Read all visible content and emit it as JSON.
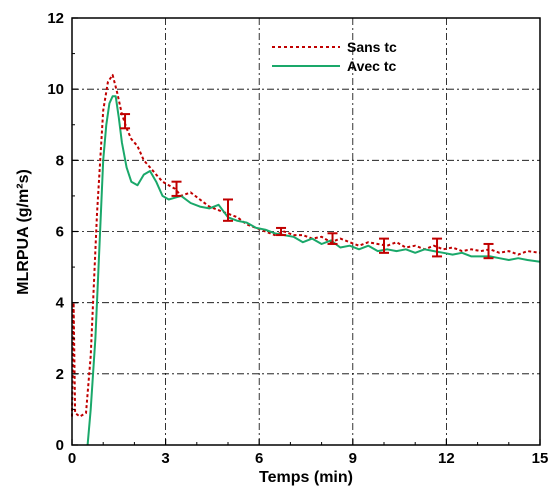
{
  "chart_data": {
    "type": "line",
    "xlabel": "Temps (min)",
    "ylabel": "MLRPUA (g/m²s)",
    "xlim": [
      0,
      15
    ],
    "ylim": [
      0,
      12
    ],
    "xticks": [
      0,
      3,
      6,
      9,
      12,
      15
    ],
    "yticks": [
      0,
      2,
      4,
      6,
      8,
      10,
      12
    ],
    "grid": true,
    "legend_position": "top-right",
    "series": [
      {
        "name": "Sans tc",
        "color": "#c00000",
        "style": "dotted",
        "x": [
          0.0,
          0.05,
          0.1,
          0.25,
          0.45,
          0.6,
          0.8,
          1.0,
          1.15,
          1.3,
          1.45,
          1.6,
          1.75,
          1.9,
          2.1,
          2.3,
          2.5,
          2.7,
          2.9,
          3.1,
          3.3,
          3.5,
          3.8,
          4.1,
          4.4,
          4.7,
          5.0,
          5.3,
          5.6,
          5.9,
          6.2,
          6.5,
          6.8,
          7.1,
          7.4,
          7.7,
          8.0,
          8.3,
          8.6,
          8.9,
          9.2,
          9.5,
          9.8,
          10.1,
          10.4,
          10.7,
          11.0,
          11.3,
          11.6,
          11.9,
          12.2,
          12.5,
          12.8,
          13.1,
          13.4,
          13.7,
          14.0,
          14.3,
          14.6,
          15.0
        ],
        "y": [
          0.8,
          4.0,
          0.9,
          0.8,
          0.9,
          2.5,
          6.5,
          9.4,
          10.2,
          10.4,
          9.9,
          9.3,
          8.9,
          8.6,
          8.4,
          8.0,
          7.8,
          7.6,
          7.4,
          7.3,
          7.2,
          7.0,
          7.1,
          6.9,
          6.7,
          6.6,
          6.5,
          6.4,
          6.2,
          6.1,
          6.0,
          5.9,
          6.0,
          5.9,
          5.9,
          5.8,
          5.85,
          5.7,
          5.8,
          5.7,
          5.6,
          5.7,
          5.65,
          5.6,
          5.7,
          5.55,
          5.6,
          5.5,
          5.6,
          5.5,
          5.55,
          5.45,
          5.5,
          5.45,
          5.5,
          5.4,
          5.45,
          5.35,
          5.45,
          5.4
        ],
        "error_bars": [
          {
            "x": 1.7,
            "y": 9.1,
            "err": 0.2
          },
          {
            "x": 3.35,
            "y": 7.2,
            "err": 0.2
          },
          {
            "x": 5.0,
            "y": 6.6,
            "err": 0.3
          },
          {
            "x": 6.7,
            "y": 6.0,
            "err": 0.1
          },
          {
            "x": 8.35,
            "y": 5.8,
            "err": 0.15
          },
          {
            "x": 10.0,
            "y": 5.6,
            "err": 0.2
          },
          {
            "x": 11.7,
            "y": 5.55,
            "err": 0.25
          },
          {
            "x": 13.35,
            "y": 5.45,
            "err": 0.2
          }
        ]
      },
      {
        "name": "Avec tc",
        "color": "#1aa86a",
        "style": "solid",
        "x": [
          0.5,
          0.6,
          0.75,
          0.9,
          1.0,
          1.1,
          1.2,
          1.3,
          1.4,
          1.5,
          1.6,
          1.75,
          1.9,
          2.1,
          2.3,
          2.5,
          2.7,
          2.9,
          3.1,
          3.3,
          3.5,
          3.8,
          4.1,
          4.4,
          4.7,
          5.0,
          5.3,
          5.6,
          5.9,
          6.2,
          6.5,
          6.8,
          7.1,
          7.4,
          7.7,
          8.0,
          8.3,
          8.6,
          8.9,
          9.2,
          9.5,
          9.8,
          10.1,
          10.4,
          10.7,
          11.0,
          11.3,
          11.6,
          11.9,
          12.2,
          12.5,
          12.8,
          13.1,
          13.4,
          13.7,
          14.0,
          14.3,
          14.6,
          15.0
        ],
        "y": [
          0.0,
          1.0,
          3.0,
          6.0,
          8.0,
          9.0,
          9.6,
          9.8,
          9.8,
          9.2,
          8.5,
          7.8,
          7.4,
          7.3,
          7.6,
          7.7,
          7.4,
          7.0,
          6.9,
          6.95,
          7.0,
          6.8,
          6.7,
          6.65,
          6.75,
          6.4,
          6.3,
          6.25,
          6.1,
          6.05,
          5.95,
          5.9,
          5.85,
          5.7,
          5.8,
          5.65,
          5.75,
          5.55,
          5.6,
          5.5,
          5.6,
          5.45,
          5.5,
          5.45,
          5.5,
          5.4,
          5.5,
          5.45,
          5.4,
          5.35,
          5.4,
          5.3,
          5.3,
          5.3,
          5.25,
          5.2,
          5.25,
          5.2,
          5.15
        ]
      }
    ]
  }
}
